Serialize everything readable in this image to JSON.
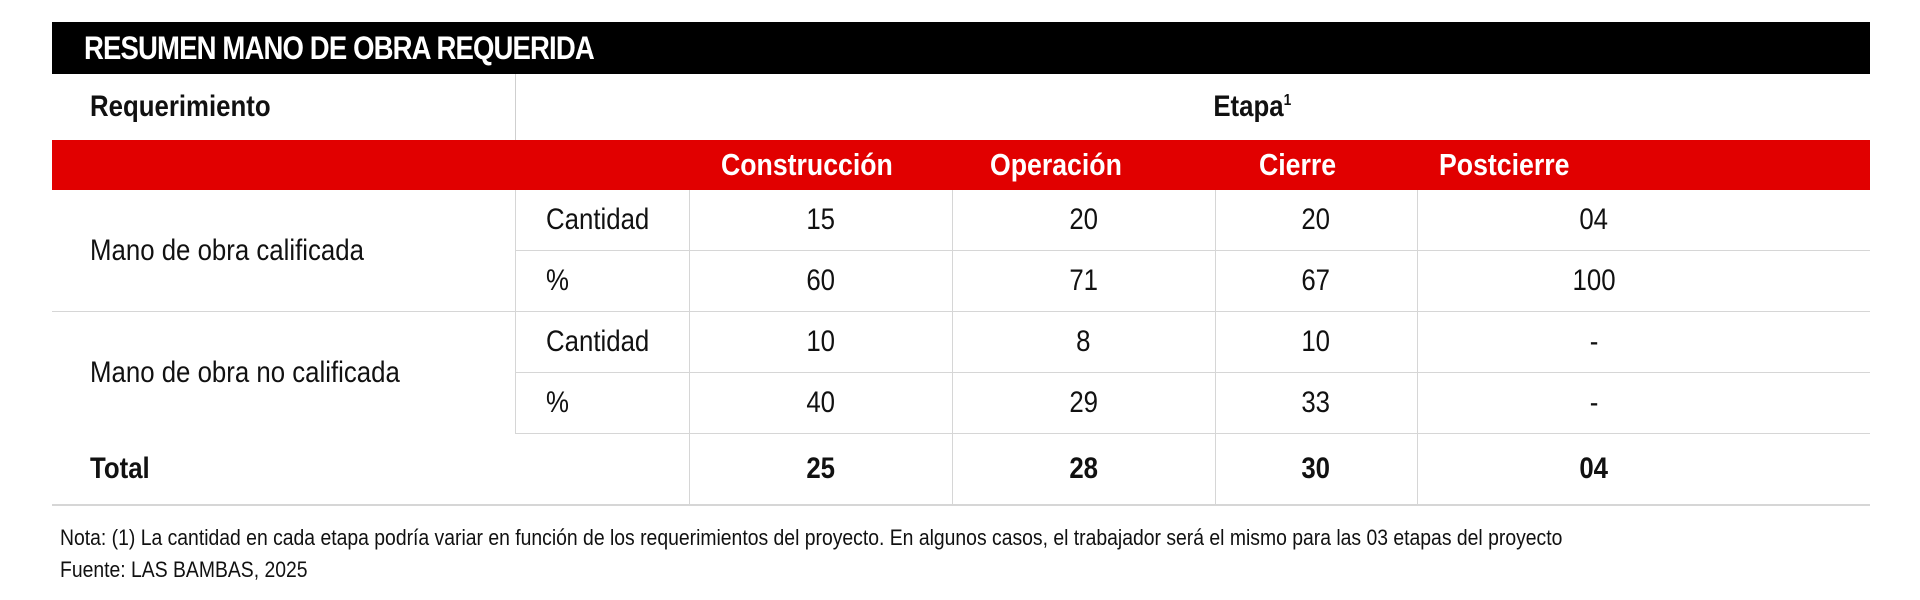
{
  "title": "RESUMEN MANO DE OBRA REQUERIDA",
  "header": {
    "requerimiento": "Requerimiento",
    "etapa": "Etapa",
    "etapa_sup": "1",
    "stages": [
      "Construcción",
      "Operación",
      "Cierre",
      "Postcierre"
    ]
  },
  "rows": {
    "calificada": {
      "label": "Mano de obra calificada",
      "cantidad_label": "Cantidad",
      "cantidad": [
        "15",
        "20",
        "20",
        "04"
      ],
      "pct_label": "%",
      "pct": [
        "60",
        "71",
        "67",
        "100"
      ]
    },
    "no_calificada": {
      "label": "Mano de obra no calificada",
      "cantidad_label": "Cantidad",
      "cantidad": [
        "10",
        "8",
        "10",
        "-"
      ],
      "pct_label": "%",
      "pct": [
        "40",
        "29",
        "33",
        "-"
      ]
    }
  },
  "total": {
    "label": "Total",
    "values": [
      "25",
      "28",
      "30",
      "04"
    ]
  },
  "notes": {
    "nota": "Nota: (1) La cantidad en cada etapa podría variar en función de los requerimientos del proyecto. En algunos casos, el trabajador será el mismo para las 03 etapas del proyecto",
    "fuente": "Fuente: LAS BAMBAS, 2025"
  },
  "colors": {
    "title_bg": "#000000",
    "header_red": "#e10000",
    "grid": "#d6d6d6"
  }
}
